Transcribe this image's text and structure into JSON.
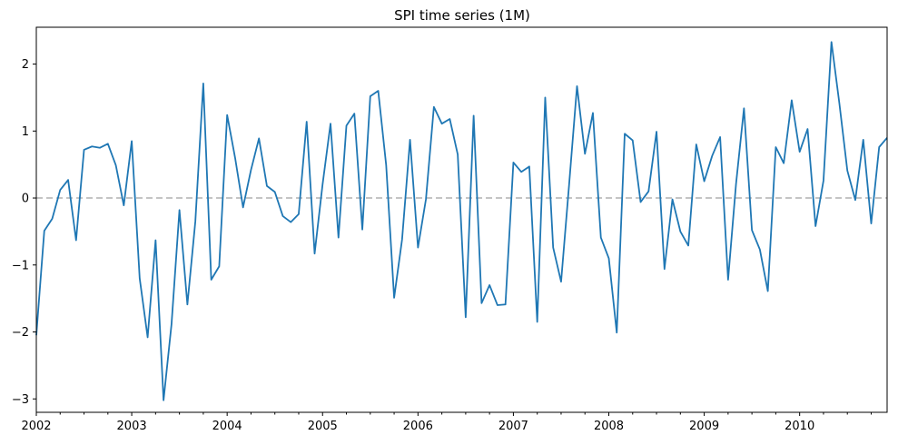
{
  "chart_data": {
    "type": "line",
    "title": "SPI time series (1M)",
    "xlabel": "",
    "ylabel": "",
    "x_start": "2002-01",
    "x_end": "2010-12",
    "frequency": "monthly",
    "x_tick_labels": [
      "2002",
      "2003",
      "2004",
      "2005",
      "2006",
      "2007",
      "2008",
      "2009",
      "2010"
    ],
    "y_tick_labels": [
      "−3",
      "−2",
      "−1",
      "0",
      "1",
      "2"
    ],
    "ylim": [
      -3.2,
      2.55
    ],
    "reference_line": {
      "y": 0,
      "style": "dashed",
      "color": "#b0b0b0"
    },
    "series": [
      {
        "color": "#1f77b4",
        "values": [
          -2.05,
          -0.49,
          -0.31,
          0.12,
          0.27,
          -0.63,
          0.72,
          0.77,
          0.75,
          0.81,
          0.49,
          -0.11,
          0.85,
          -1.2,
          -2.08,
          -0.63,
          -3.02,
          -1.89,
          -0.18,
          -1.59,
          -0.35,
          1.71,
          -1.22,
          -1.02,
          1.24,
          0.6,
          -0.14,
          0.42,
          0.89,
          0.18,
          0.09,
          -0.27,
          -0.36,
          -0.24,
          1.14,
          -0.83,
          0.2,
          1.11,
          -0.59,
          1.08,
          1.26,
          -0.47,
          1.52,
          1.6,
          0.49,
          -1.49,
          -0.62,
          0.87,
          -0.74,
          -0.02,
          1.36,
          1.11,
          1.18,
          0.65,
          -1.78,
          1.23,
          -1.57,
          -1.3,
          -1.6,
          -1.59,
          0.53,
          0.39,
          0.47,
          -1.85,
          1.5,
          -0.74,
          -1.25,
          0.19,
          1.67,
          0.66,
          1.27,
          -0.59,
          -0.9,
          -2.01,
          0.96,
          0.86,
          -0.06,
          0.1,
          0.99,
          -1.06,
          -0.02,
          -0.5,
          -0.71,
          0.8,
          0.25,
          0.63,
          0.91,
          -1.22,
          0.21,
          1.34,
          -0.48,
          -0.77,
          -1.39,
          0.76,
          0.52,
          1.46,
          0.69,
          1.03,
          -0.42,
          0.26,
          2.33,
          1.41,
          0.41,
          -0.03,
          0.87,
          -0.38,
          0.76,
          0.9
        ]
      }
    ],
    "grid": false,
    "legend": "none"
  }
}
